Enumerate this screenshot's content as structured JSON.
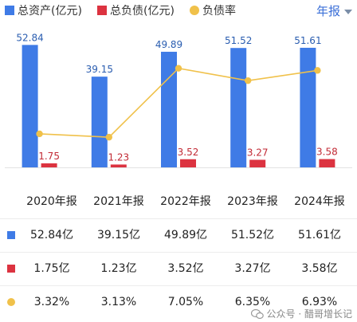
{
  "legend": {
    "assets_label": "总资产(亿元)",
    "liabilities_label": "总负债(亿元)",
    "ratio_label": "负债率"
  },
  "period_selector": {
    "label": "年报"
  },
  "colors": {
    "assets": "#3f7be6",
    "liabilities": "#dc3340",
    "ratio": "#f0c14a"
  },
  "chart_data": {
    "type": "bar",
    "categories": [
      "2020年报",
      "2021年报",
      "2022年报",
      "2023年报",
      "2024年报"
    ],
    "series": [
      {
        "name": "总资产(亿元)",
        "type": "bar",
        "values": [
          52.84,
          39.15,
          49.89,
          51.52,
          51.61
        ],
        "labels": [
          "52.84",
          "39.15",
          "49.89",
          "51.52",
          "51.61"
        ]
      },
      {
        "name": "总负债(亿元)",
        "type": "bar",
        "values": [
          1.75,
          1.23,
          3.52,
          3.27,
          3.58
        ],
        "labels": [
          "1.75",
          "1.23",
          "3.52",
          "3.27",
          "3.58"
        ]
      },
      {
        "name": "负债率",
        "type": "line",
        "values": [
          3.32,
          3.13,
          7.05,
          6.35,
          6.93
        ]
      }
    ],
    "ylim": [
      0,
      54
    ],
    "ratio_ylim": [
      0,
      8.5
    ],
    "grid": false,
    "legend_position": "top-left"
  },
  "table": {
    "headers": [
      "2020年报",
      "2021年报",
      "2022年报",
      "2023年报",
      "2024年报"
    ],
    "rows": [
      {
        "marker": "square-blue",
        "values": [
          "52.84亿",
          "39.15亿",
          "49.89亿",
          "51.52亿",
          "51.61亿"
        ]
      },
      {
        "marker": "square-red",
        "values": [
          "1.75亿",
          "1.23亿",
          "3.52亿",
          "3.27亿",
          "3.58亿"
        ]
      },
      {
        "marker": "dot-yellow",
        "values": [
          "3.32%",
          "3.13%",
          "7.05%",
          "6.35%",
          "6.93%"
        ]
      }
    ]
  },
  "watermark": {
    "text": "公众号 · 醋哥增长记"
  }
}
